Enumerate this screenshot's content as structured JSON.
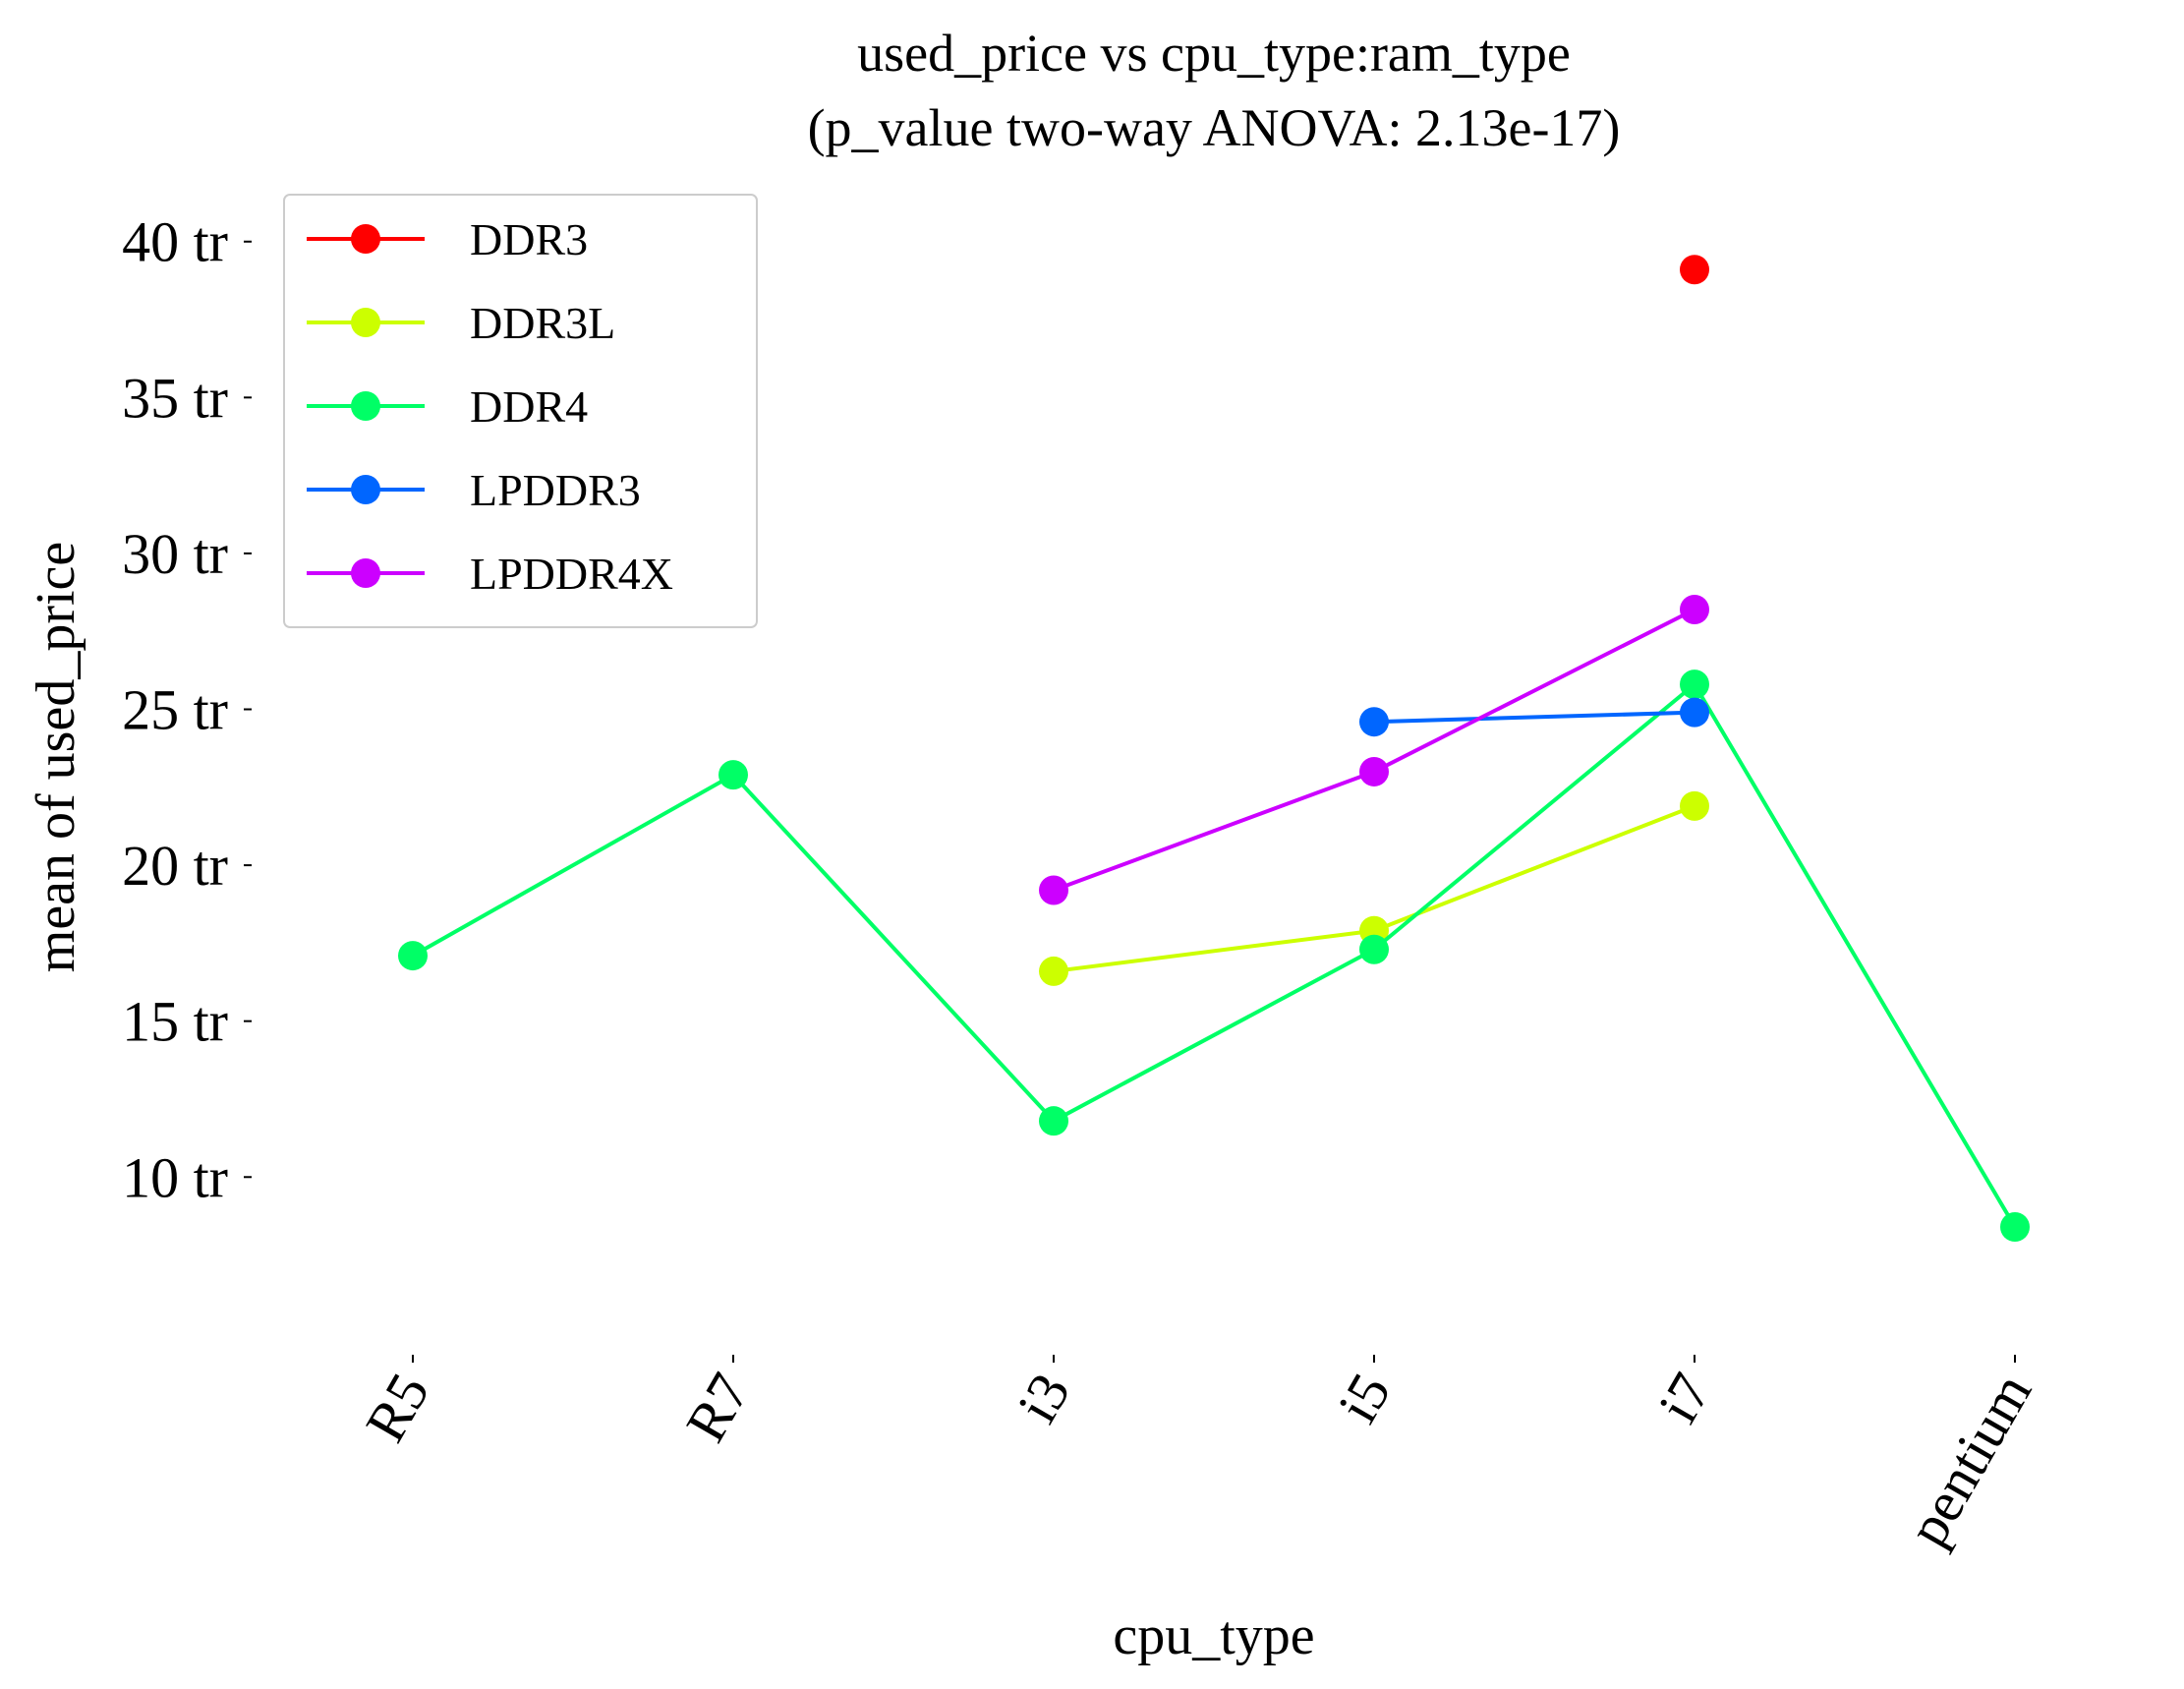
{
  "chart_data": {
    "type": "line",
    "title": "used_price vs cpu_type:ram_type",
    "subtitle": "(p_value two-way ANOVA: 2.13e-17)",
    "xlabel": "cpu_type",
    "ylabel": "mean of used_price",
    "categories": [
      "R5",
      "R7",
      "i3",
      "i5",
      "i7",
      "pentium"
    ],
    "y_tick_values": [
      10,
      15,
      20,
      25,
      30,
      35,
      40
    ],
    "y_tick_labels": [
      "10 tr",
      "15 tr",
      "20 tr",
      "25 tr",
      "30 tr",
      "35 tr",
      "40 tr"
    ],
    "ylim": [
      5.5,
      41.6
    ],
    "grid": false,
    "legend_placement": "top-left",
    "series": [
      {
        "name": "DDR3",
        "color": "#ff0000",
        "values": [
          null,
          null,
          null,
          null,
          39.1,
          null
        ]
      },
      {
        "name": "DDR3L",
        "color": "#ccff00",
        "values": [
          null,
          null,
          16.6,
          17.9,
          21.9,
          null
        ]
      },
      {
        "name": "DDR4",
        "color": "#00ff66",
        "values": [
          17.1,
          22.9,
          11.8,
          17.3,
          25.8,
          8.4
        ]
      },
      {
        "name": "LPDDR3",
        "color": "#0066ff",
        "values": [
          null,
          null,
          null,
          24.6,
          24.9,
          null
        ]
      },
      {
        "name": "LPDDR4X",
        "color": "#cc00ff",
        "values": [
          null,
          null,
          19.2,
          23.0,
          28.2,
          null
        ]
      }
    ]
  }
}
